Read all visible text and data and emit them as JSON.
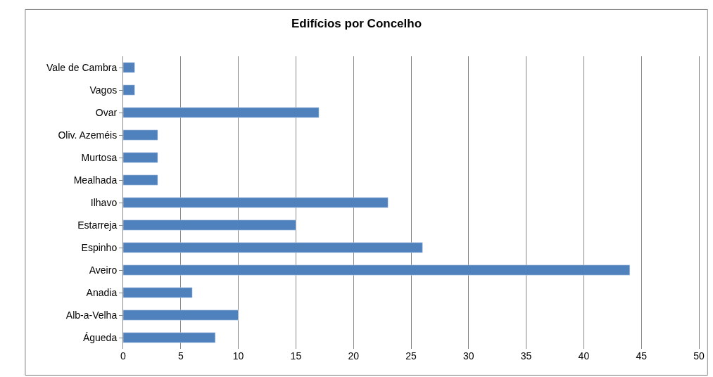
{
  "chart_data": {
    "type": "bar",
    "orientation": "horizontal",
    "title": "Edifícios por Concelho",
    "categories": [
      "Vale de Cambra",
      "Vagos",
      "Ovar",
      "Oliv. Azeméis",
      "Murtosa",
      "Mealhada",
      "Ilhavo",
      "Estarreja",
      "Espinho",
      "Aveiro",
      "Anadia",
      "Alb-a-Velha",
      "Águeda"
    ],
    "values": [
      1,
      1,
      17,
      3,
      3,
      3,
      23,
      15,
      26,
      44,
      6,
      10,
      8
    ],
    "color": "#4f81bd",
    "xlim": [
      0,
      50
    ],
    "xticks": [
      0,
      5,
      10,
      15,
      20,
      25,
      30,
      35,
      40,
      45,
      50
    ],
    "grid": "x"
  }
}
